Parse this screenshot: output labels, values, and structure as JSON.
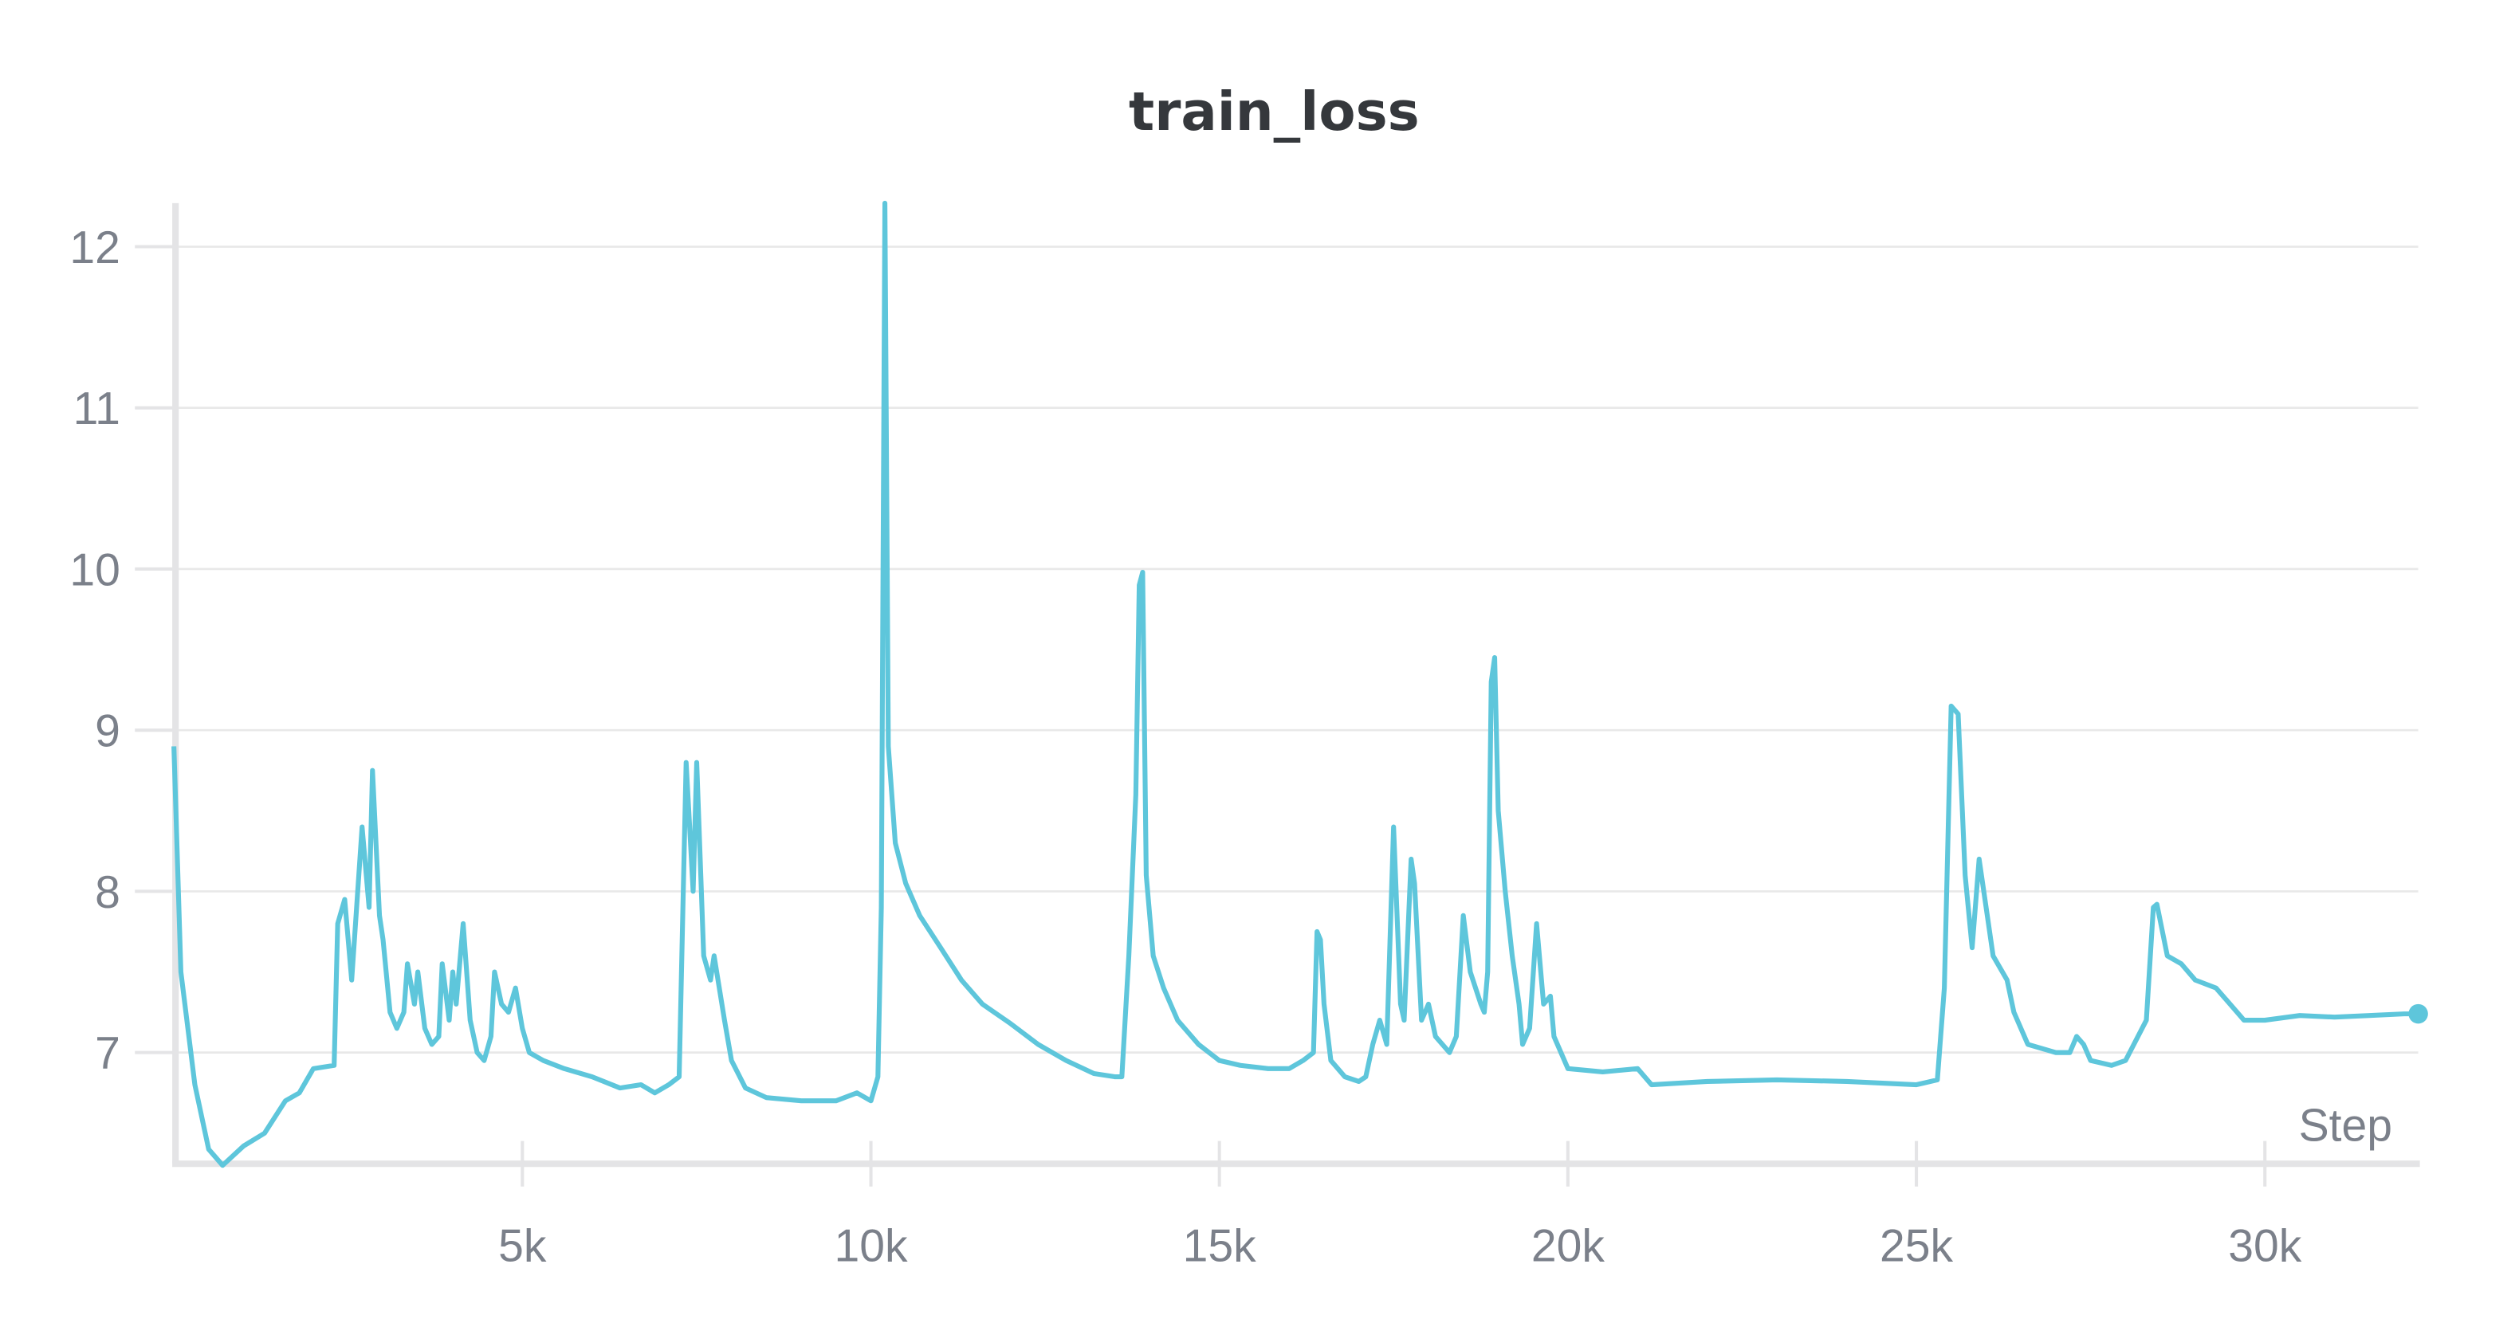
{
  "chart_data": {
    "type": "line",
    "title": "train_loss",
    "xlabel": "Step",
    "ylabel": "",
    "xlim": [
      0,
      32200
    ],
    "ylim": [
      6.31,
      12.27
    ],
    "grid": true,
    "x_ticks": [
      {
        "value": 5000,
        "label": "5k"
      },
      {
        "value": 10000,
        "label": "10k"
      },
      {
        "value": 15000,
        "label": "15k"
      },
      {
        "value": 20000,
        "label": "20k"
      },
      {
        "value": 25000,
        "label": "25k"
      },
      {
        "value": 30000,
        "label": "30k"
      }
    ],
    "y_ticks": [
      {
        "value": 7,
        "label": "7"
      },
      {
        "value": 8,
        "label": "8"
      },
      {
        "value": 9,
        "label": "9"
      },
      {
        "value": 10,
        "label": "10"
      },
      {
        "value": 11,
        "label": "11"
      },
      {
        "value": 12,
        "label": "12"
      }
    ],
    "series": [
      {
        "name": "train_loss",
        "color": "#5ec6db",
        "x": [
          0,
          100,
          300,
          500,
          700,
          1000,
          1300,
          1600,
          1800,
          2000,
          2300,
          2350,
          2450,
          2550,
          2700,
          2800,
          2850,
          2950,
          3000,
          3100,
          3200,
          3300,
          3350,
          3450,
          3500,
          3600,
          3700,
          3800,
          3850,
          3950,
          4000,
          4050,
          4150,
          4250,
          4350,
          4450,
          4550,
          4600,
          4700,
          4800,
          4900,
          5000,
          5100,
          5300,
          5600,
          6000,
          6400,
          6700,
          6900,
          7100,
          7250,
          7350,
          7450,
          7500,
          7600,
          7700,
          7750,
          7900,
          8000,
          8200,
          8500,
          9000,
          9500,
          9800,
          10000,
          10100,
          10150,
          10200,
          10250,
          10350,
          10500,
          10700,
          11000,
          11300,
          11600,
          12000,
          12400,
          12800,
          13200,
          13500,
          13600,
          13700,
          13800,
          13850,
          13900,
          13950,
          14050,
          14200,
          14400,
          14700,
          15000,
          15300,
          15700,
          16000,
          16200,
          16350,
          16400,
          16450,
          16500,
          16600,
          16800,
          17000,
          17100,
          17200,
          17300,
          17400,
          17500,
          17600,
          17650,
          17750,
          17800,
          17900,
          18000,
          18100,
          18300,
          18400,
          18500,
          18600,
          18750,
          18800,
          18850,
          18900,
          18950,
          19000,
          19100,
          19200,
          19300,
          19350,
          19450,
          19550,
          19650,
          19750,
          19800,
          20000,
          20500,
          21000,
          21200,
          22000,
          23000,
          24000,
          25000,
          25300,
          25400,
          25500,
          25600,
          25700,
          25800,
          25900,
          26000,
          26100,
          26300,
          26400,
          26600,
          27000,
          27200,
          27300,
          27400,
          27500,
          27800,
          28000,
          28300,
          28400,
          28450,
          28600,
          28800,
          29000,
          29300,
          29500,
          29700,
          30000,
          30500,
          31000,
          31500,
          32000,
          32200
        ],
        "y": [
          8.9,
          7.5,
          6.8,
          6.4,
          6.3,
          6.42,
          6.5,
          6.7,
          6.75,
          6.9,
          6.92,
          7.8,
          7.95,
          7.45,
          8.4,
          7.9,
          8.75,
          7.85,
          7.7,
          7.25,
          7.15,
          7.25,
          7.55,
          7.3,
          7.5,
          7.15,
          7.05,
          7.1,
          7.55,
          7.2,
          7.5,
          7.3,
          7.8,
          7.2,
          7.0,
          6.95,
          7.1,
          7.5,
          7.3,
          7.25,
          7.4,
          7.15,
          7.0,
          6.95,
          6.9,
          6.85,
          6.78,
          6.8,
          6.75,
          6.8,
          6.85,
          8.8,
          8.0,
          8.8,
          7.6,
          7.45,
          7.6,
          7.2,
          6.95,
          6.78,
          6.72,
          6.7,
          6.7,
          6.75,
          6.7,
          6.85,
          7.9,
          12.3,
          8.9,
          8.3,
          8.05,
          7.85,
          7.65,
          7.45,
          7.3,
          7.18,
          7.05,
          6.95,
          6.87,
          6.85,
          6.85,
          7.6,
          8.6,
          9.9,
          9.98,
          8.1,
          7.6,
          7.4,
          7.2,
          7.05,
          6.95,
          6.92,
          6.9,
          6.9,
          6.95,
          7.0,
          7.75,
          7.7,
          7.3,
          6.95,
          6.85,
          6.82,
          6.85,
          7.05,
          7.2,
          7.05,
          8.4,
          7.3,
          7.2,
          8.2,
          8.05,
          7.2,
          7.3,
          7.1,
          7.0,
          7.1,
          7.85,
          7.5,
          7.3,
          7.25,
          7.5,
          9.3,
          9.45,
          8.5,
          8.0,
          7.6,
          7.3,
          7.05,
          7.15,
          7.8,
          7.3,
          7.35,
          7.1,
          6.9,
          6.88,
          6.9,
          6.8,
          6.82,
          6.83,
          6.82,
          6.8,
          6.83,
          7.4,
          9.15,
          9.1,
          8.1,
          7.65,
          8.2,
          7.9,
          7.6,
          7.45,
          7.25,
          7.05,
          7.0,
          7.0,
          7.1,
          7.05,
          6.95,
          6.92,
          6.95,
          7.2,
          7.9,
          7.92,
          7.6,
          7.55,
          7.45,
          7.4,
          7.3,
          7.2,
          7.2,
          7.23,
          7.22,
          7.23,
          7.24,
          7.24
        ]
      }
    ]
  }
}
